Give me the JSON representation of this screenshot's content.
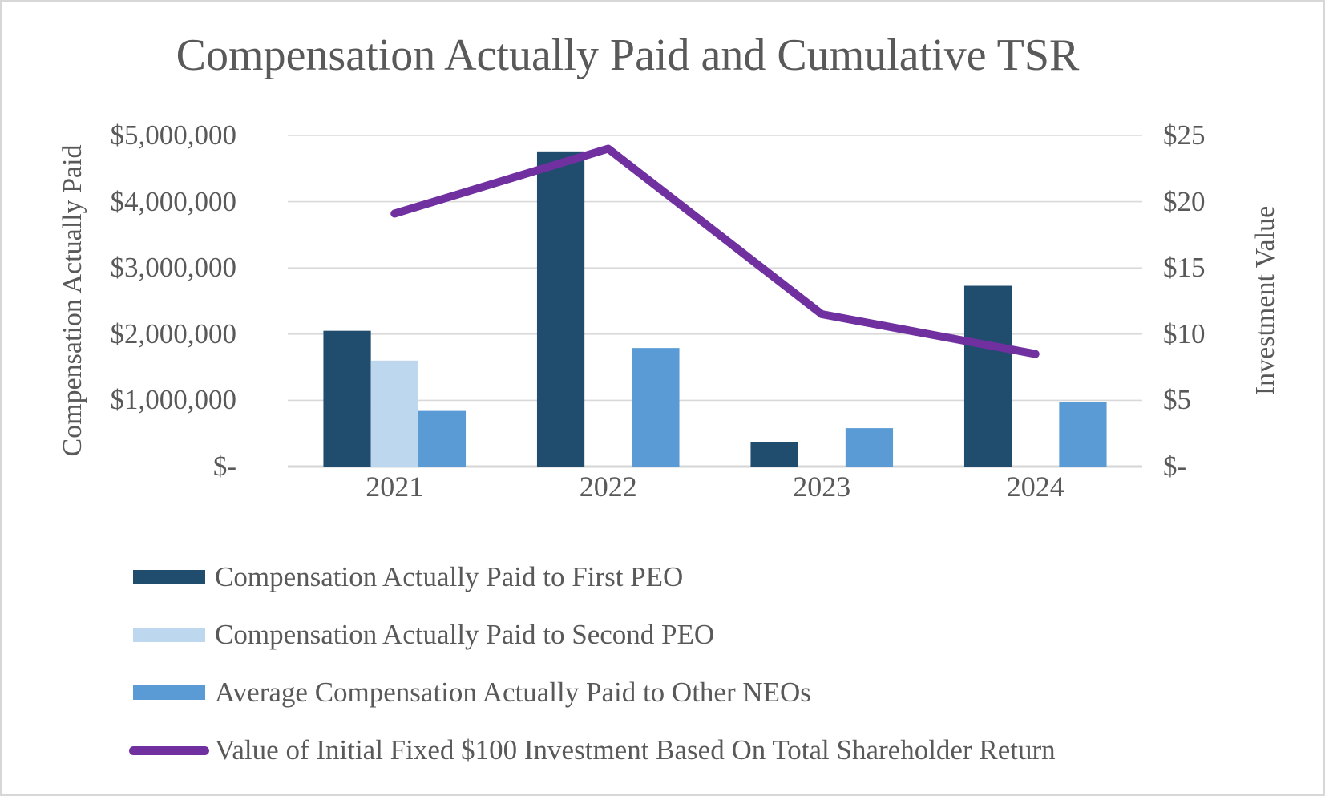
{
  "chart_data": {
    "type": "combo-bar-line",
    "title": "Compensation Actually Paid and Cumulative TSR",
    "categories": [
      "2021",
      "2022",
      "2023",
      "2024"
    ],
    "bar_series": [
      {
        "name": "Compensation Actually Paid to First PEO",
        "color": "#204D6E",
        "values": [
          2050000,
          4760000,
          370000,
          2730000
        ]
      },
      {
        "name": "Compensation Actually Paid to Second PEO",
        "color": "#BDD7EE",
        "values": [
          1600000,
          null,
          null,
          null
        ]
      },
      {
        "name": "Average Compensation Actually Paid to Other NEOs",
        "color": "#5B9BD5",
        "values": [
          840000,
          1790000,
          580000,
          970000
        ]
      }
    ],
    "line_series": {
      "name": "Value of Initial Fixed $100 Investment Based On Total Shareholder Return",
      "color": "#7030A0",
      "values": [
        19.1,
        24.0,
        11.5,
        8.5
      ]
    },
    "left_axis": {
      "title": "Compensation Actually Paid",
      "min": 0,
      "max": 5000000,
      "step": 1000000,
      "tick_labels": [
        "$-",
        "$1,000,000",
        "$2,000,000",
        "$3,000,000",
        "$4,000,000",
        "$5,000,000"
      ]
    },
    "right_axis": {
      "title": "Investment Value",
      "min": 0,
      "max": 25,
      "step": 5,
      "tick_labels": [
        "$-",
        "$5",
        "$10",
        "$15",
        "$20",
        "$25"
      ]
    },
    "grid": true,
    "legend_position": "bottom-left"
  },
  "colors": {
    "text": "#595959",
    "gridline": "#D9D9D9",
    "baseline": "#D6D6D6",
    "background": "#FFFFFF",
    "frame_border": "#D7D7D7"
  }
}
